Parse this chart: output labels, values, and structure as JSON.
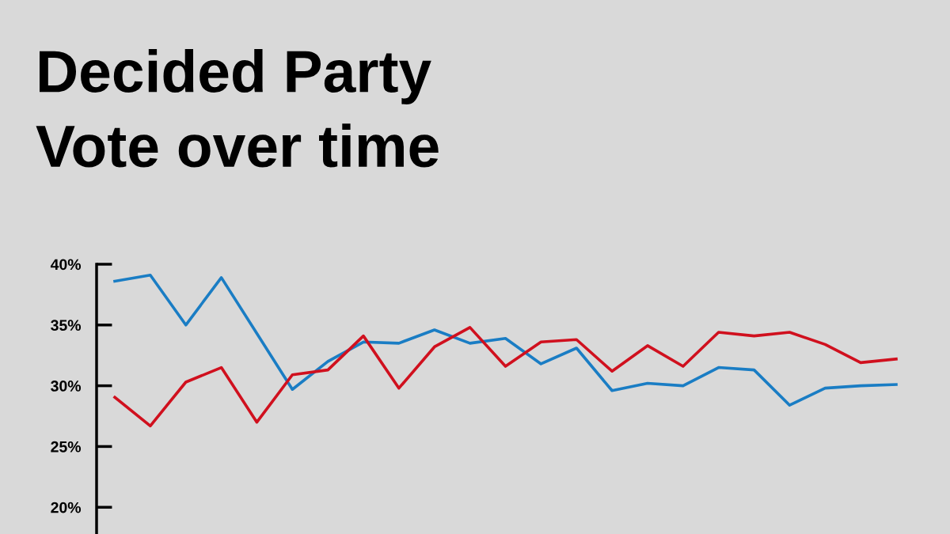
{
  "chart_data": {
    "type": "line",
    "title": "Decided Party\nVote over time",
    "categories": [
      null,
      null,
      null,
      null,
      null,
      null,
      null,
      null,
      null,
      null,
      null,
      null,
      null,
      null,
      null,
      null,
      null,
      null,
      null,
      null,
      null,
      null,
      null
    ],
    "series": [
      {
        "color": "#1a7dc4",
        "values": [
          38.6,
          39.1,
          35.0,
          38.9,
          34.3,
          29.7,
          32.0,
          33.6,
          33.5,
          34.6,
          33.5,
          33.9,
          31.8,
          33.1,
          29.6,
          30.2,
          30.0,
          31.5,
          31.3,
          28.4,
          29.8,
          30.0,
          30.1
        ]
      },
      {
        "color": "#d0101e",
        "values": [
          29.05,
          26.7,
          30.3,
          31.5,
          27.0,
          30.9,
          31.3,
          34.1,
          29.8,
          33.2,
          34.8,
          31.6,
          33.6,
          33.8,
          31.2,
          33.3,
          31.6,
          34.4,
          34.1,
          34.4,
          33.4,
          31.9,
          32.2
        ]
      }
    ],
    "ylim": [
      17.8,
      40
    ],
    "yticks": [
      {
        "value": 20,
        "label": "20%"
      },
      {
        "value": 25,
        "label": "25%"
      },
      {
        "value": 30,
        "label": "30%"
      },
      {
        "value": 35,
        "label": "35%"
      },
      {
        "value": 40,
        "label": "40%"
      }
    ],
    "grid": false,
    "legend": false,
    "marker": "none",
    "line_style": "solid"
  }
}
